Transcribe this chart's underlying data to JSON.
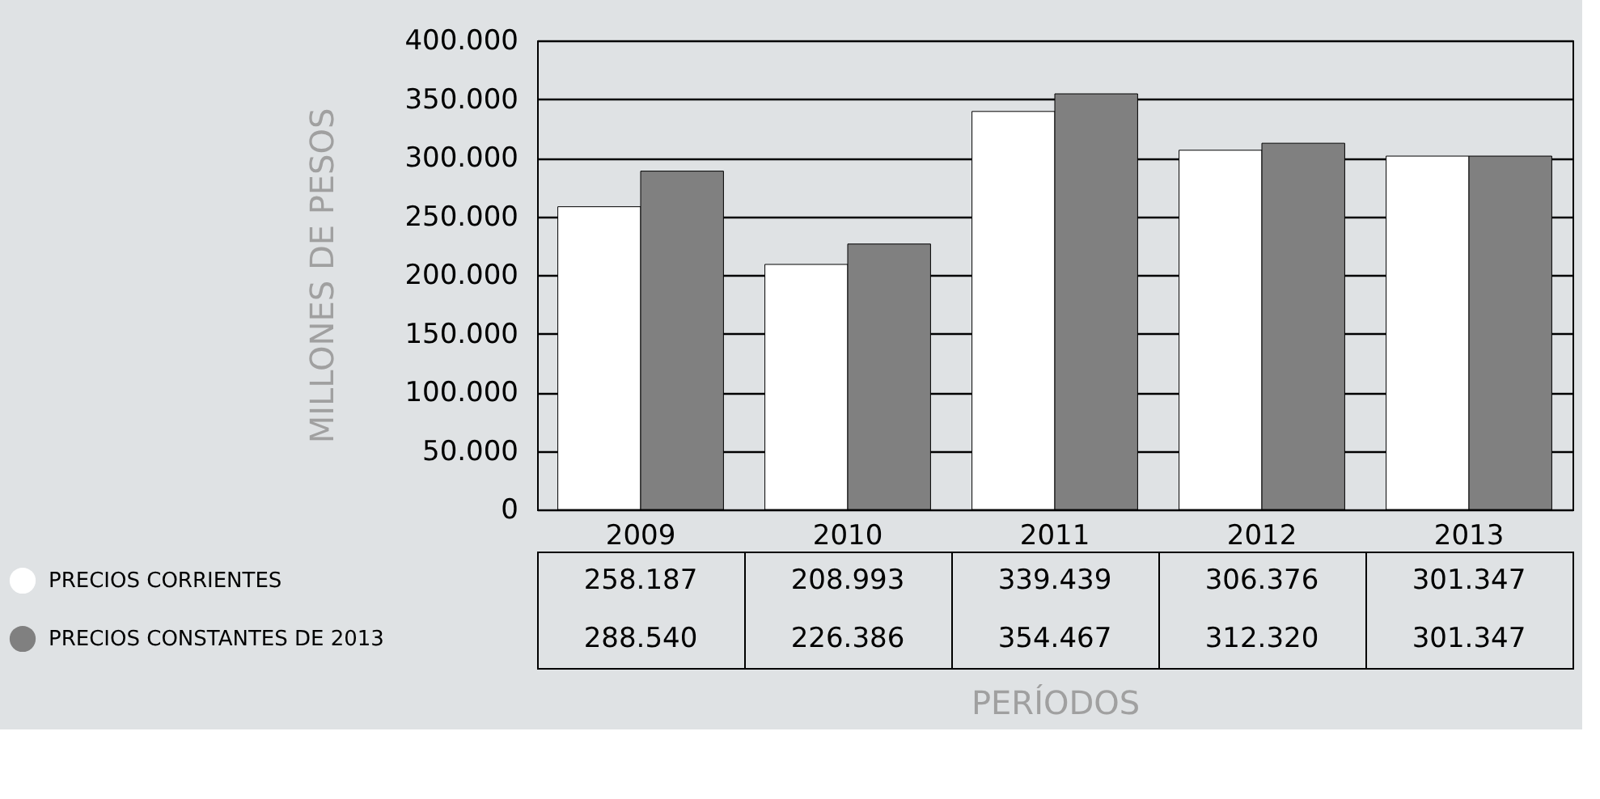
{
  "chart_data": {
    "type": "bar",
    "xlabel": "PERÍODOS",
    "ylabel": "MILLONES DE PESOS",
    "categories": [
      "2009",
      "2010",
      "2011",
      "2012",
      "2013"
    ],
    "series": [
      {
        "name": "PRECIOS CORRIENTES",
        "color": "#ffffff",
        "values": [
          258187,
          208993,
          339439,
          306376,
          301347
        ],
        "value_labels": [
          "258.187",
          "208.993",
          "339.439",
          "306.376",
          "301.347"
        ]
      },
      {
        "name": "PRECIOS CONSTANTES DE 2013",
        "color": "#808080",
        "values": [
          288540,
          226386,
          354467,
          312320,
          301347
        ],
        "value_labels": [
          "288.540",
          "226.386",
          "354.467",
          "312.320",
          "301.347"
        ]
      }
    ],
    "ylim": [
      0,
      400000
    ],
    "yticks": [
      {
        "value": 0,
        "label": "0"
      },
      {
        "value": 50000,
        "label": "50.000"
      },
      {
        "value": 100000,
        "label": "100.000"
      },
      {
        "value": 150000,
        "label": "150.000"
      },
      {
        "value": 200000,
        "label": "200.000"
      },
      {
        "value": 250000,
        "label": "250.000"
      },
      {
        "value": 300000,
        "label": "300.000"
      },
      {
        "value": 350000,
        "label": "350.000"
      },
      {
        "value": 400000,
        "label": "400.000"
      }
    ],
    "grid": "y",
    "legend": "bottom left"
  }
}
